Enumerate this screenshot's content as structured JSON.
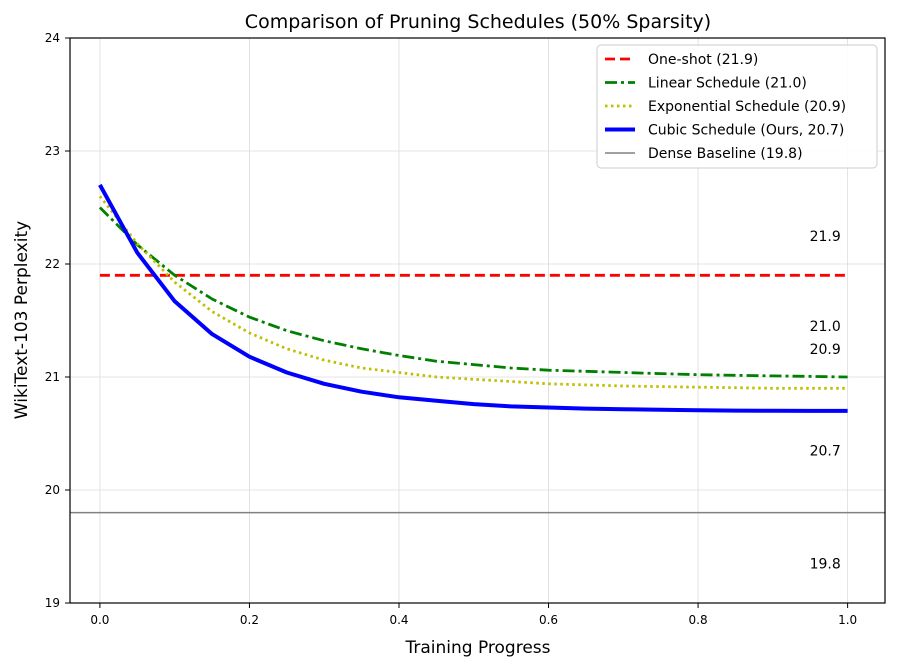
{
  "chart_data": {
    "type": "line",
    "title": "Comparison of Pruning Schedules (50% Sparsity)",
    "xlabel": "Training Progress",
    "ylabel": "WikiText-103 Perplexity",
    "xlim": [
      -0.04,
      1.05
    ],
    "ylim": [
      19,
      24
    ],
    "xticks": [
      0.0,
      0.2,
      0.4,
      0.6,
      0.8,
      1.0
    ],
    "xtick_labels": [
      "0.0",
      "0.2",
      "0.4",
      "0.6",
      "0.8",
      "1.0"
    ],
    "yticks": [
      19,
      20,
      21,
      22,
      23,
      24
    ],
    "ytick_labels": [
      "19",
      "20",
      "21",
      "22",
      "23",
      "24"
    ],
    "grid": true,
    "legend_position": "top-right",
    "series": [
      {
        "name": "One-shot (21.9)",
        "color": "#ff0000",
        "style": "dashed",
        "x": [
          0.0,
          1.0
        ],
        "y": [
          21.9,
          21.9
        ]
      },
      {
        "name": "Linear Schedule (21.0)",
        "color": "#008000",
        "style": "dashdot",
        "x": [
          0.0,
          0.05,
          0.1,
          0.15,
          0.2,
          0.25,
          0.3,
          0.35,
          0.4,
          0.45,
          0.5,
          0.55,
          0.6,
          0.65,
          0.7,
          0.75,
          0.8,
          0.85,
          0.9,
          0.95,
          1.0
        ],
        "y": [
          22.5,
          22.17,
          21.9,
          21.69,
          21.53,
          21.41,
          21.32,
          21.25,
          21.19,
          21.14,
          21.11,
          21.08,
          21.06,
          21.05,
          21.04,
          21.03,
          21.02,
          21.015,
          21.01,
          21.005,
          21.0
        ]
      },
      {
        "name": "Exponential Schedule (20.9)",
        "color": "#bfbf00",
        "style": "dotted",
        "x": [
          0.0,
          0.05,
          0.1,
          0.15,
          0.2,
          0.25,
          0.3,
          0.35,
          0.4,
          0.45,
          0.5,
          0.55,
          0.6,
          0.65,
          0.7,
          0.75,
          0.8,
          0.85,
          0.9,
          0.95,
          1.0
        ],
        "y": [
          22.6,
          22.18,
          21.84,
          21.58,
          21.39,
          21.25,
          21.15,
          21.08,
          21.04,
          21.0,
          20.98,
          20.96,
          20.94,
          20.93,
          20.92,
          20.915,
          20.91,
          20.905,
          20.9,
          20.9,
          20.9
        ]
      },
      {
        "name": "Cubic Schedule (Ours, 20.7)",
        "color": "#0000ff",
        "style": "solid",
        "x": [
          0.0,
          0.05,
          0.1,
          0.15,
          0.2,
          0.25,
          0.3,
          0.35,
          0.4,
          0.45,
          0.5,
          0.55,
          0.6,
          0.65,
          0.7,
          0.75,
          0.8,
          0.85,
          0.9,
          0.95,
          1.0
        ],
        "y": [
          22.7,
          22.1,
          21.67,
          21.38,
          21.18,
          21.04,
          20.94,
          20.87,
          20.82,
          20.79,
          20.76,
          20.74,
          20.73,
          20.72,
          20.715,
          20.71,
          20.705,
          20.703,
          20.701,
          20.7,
          20.7
        ]
      },
      {
        "name": "Dense Baseline (19.8)",
        "color": "#808080",
        "style": "solid-thin",
        "x": [
          -0.04,
          1.05
        ],
        "y": [
          19.8,
          19.8
        ]
      }
    ],
    "annotations": [
      {
        "text": "21.9",
        "x": 0.97,
        "y": 22.25
      },
      {
        "text": "21.0",
        "x": 0.97,
        "y": 21.45
      },
      {
        "text": "20.9",
        "x": 0.97,
        "y": 21.25
      },
      {
        "text": "20.7",
        "x": 0.97,
        "y": 20.35
      },
      {
        "text": "19.8",
        "x": 0.97,
        "y": 19.35
      }
    ]
  }
}
